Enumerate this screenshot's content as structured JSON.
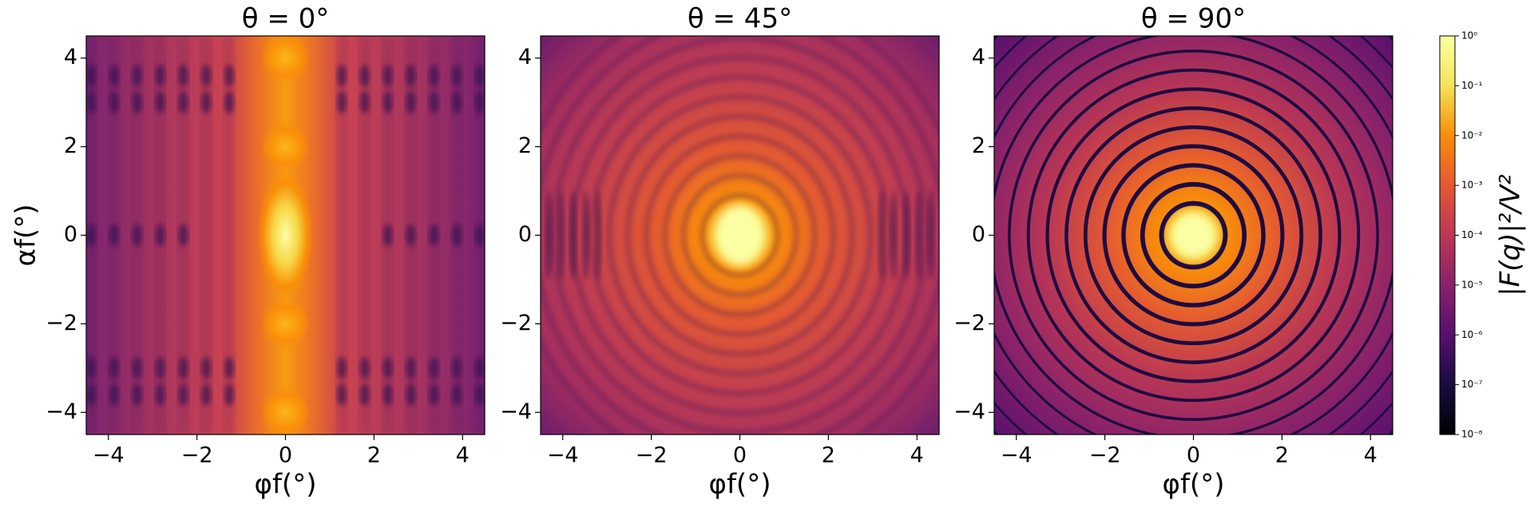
{
  "chart_data": [
    {
      "type": "heatmap",
      "title": "θ = 0°",
      "xlabel": "φf(°)",
      "ylabel": "αf(°)",
      "xlim": [
        -4.5,
        4.5
      ],
      "ylim": [
        -4.5,
        4.5
      ],
      "xticks": [
        {
          "value": -4,
          "label": "−4"
        },
        {
          "value": -2,
          "label": "−2"
        },
        0,
        2,
        4
      ],
      "yticks": [
        {
          "value": -4,
          "label": "−4"
        },
        {
          "value": -2,
          "label": "−2"
        },
        0,
        2,
        4
      ],
      "colormap": "inferno"
    },
    {
      "type": "heatmap",
      "title": "θ = 45°",
      "xlabel": "φf(°)",
      "xlim": [
        -4.5,
        4.5
      ],
      "ylim": [
        -4.5,
        4.5
      ],
      "xticks": [
        {
          "value": -4,
          "label": "−4"
        },
        {
          "value": -2,
          "label": "−2"
        },
        0,
        2,
        4
      ],
      "yticks": [
        {
          "value": -4,
          "label": "−4"
        },
        {
          "value": -2,
          "label": "−2"
        },
        0,
        2,
        4
      ],
      "colormap": "inferno"
    },
    {
      "type": "heatmap",
      "title": "θ = 90°",
      "xlabel": "φf(°)",
      "xlim": [
        -4.5,
        4.5
      ],
      "ylim": [
        -4.5,
        4.5
      ],
      "xticks": [
        {
          "value": -4,
          "label": "−4"
        },
        {
          "value": -2,
          "label": "−2"
        },
        0,
        2,
        4
      ],
      "yticks": [
        {
          "value": -4,
          "label": "−4"
        },
        {
          "value": -2,
          "label": "−2"
        },
        0,
        2,
        4
      ],
      "colormap": "inferno"
    },
    {
      "type": "colorbar",
      "label": "|F(q)|²/V²",
      "log_scale": true,
      "colormap": "inferno",
      "clim": [
        1e-08,
        1
      ],
      "ticks": [
        {
          "value": 1,
          "label": "10⁰"
        },
        {
          "value": 0.1,
          "label": "10⁻¹"
        },
        {
          "value": 0.01,
          "label": "10⁻²"
        },
        {
          "value": 0.001,
          "label": "10⁻³"
        },
        {
          "value": 0.0001,
          "label": "10⁻⁴"
        },
        {
          "value": 1e-05,
          "label": "10⁻⁵"
        },
        {
          "value": 1e-06,
          "label": "10⁻⁶"
        },
        {
          "value": 1e-07,
          "label": "10⁻⁷"
        },
        {
          "value": 1e-08,
          "label": "10⁻⁸"
        }
      ]
    }
  ]
}
